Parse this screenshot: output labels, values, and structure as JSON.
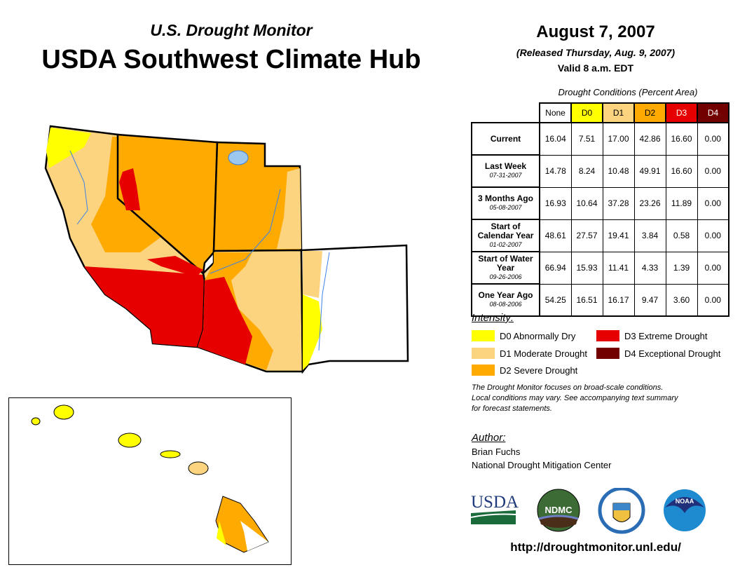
{
  "header": {
    "subtitle": "U.S. Drought Monitor",
    "title": "USDA Southwest Climate Hub",
    "date": "August 7, 2007",
    "released": "(Released Thursday, Aug. 9, 2007)",
    "valid": "Valid 8 a.m. EDT"
  },
  "table": {
    "title": "Drought Conditions (Percent Area)",
    "columns": [
      "None",
      "D0",
      "D1",
      "D2",
      "D3",
      "D4"
    ],
    "rows": [
      {
        "label": "Current",
        "date": "",
        "values": [
          "16.04",
          "7.51",
          "17.00",
          "42.86",
          "16.60",
          "0.00"
        ]
      },
      {
        "label": "Last Week",
        "date": "07-31-2007",
        "values": [
          "14.78",
          "8.24",
          "10.48",
          "49.91",
          "16.60",
          "0.00"
        ]
      },
      {
        "label": "3 Months Ago",
        "date": "05-08-2007",
        "values": [
          "16.93",
          "10.64",
          "37.28",
          "23.26",
          "11.89",
          "0.00"
        ]
      },
      {
        "label": "Start of Calendar Year",
        "date": "01-02-2007",
        "values": [
          "48.61",
          "27.57",
          "19.41",
          "3.84",
          "0.58",
          "0.00"
        ]
      },
      {
        "label": "Start of Water Year",
        "date": "09-26-2006",
        "values": [
          "66.94",
          "15.93",
          "11.41",
          "4.33",
          "1.39",
          "0.00"
        ]
      },
      {
        "label": "One Year Ago",
        "date": "08-08-2006",
        "values": [
          "54.25",
          "16.51",
          "16.17",
          "9.47",
          "3.60",
          "0.00"
        ]
      }
    ]
  },
  "legend": {
    "title": "Intensity:",
    "items": [
      {
        "label": "D0 Abnormally Dry",
        "color": "#FFFF00"
      },
      {
        "label": "D1 Moderate Drought",
        "color": "#FCD37F"
      },
      {
        "label": "D2 Severe Drought",
        "color": "#FFAA00"
      },
      {
        "label": "D3 Extreme Drought",
        "color": "#E60000"
      },
      {
        "label": "D4 Exceptional Drought",
        "color": "#730000"
      }
    ]
  },
  "note": [
    "The Drought Monitor focuses on broad-scale conditions.",
    "Local conditions may vary. See accompanying text summary",
    "for forecast statements."
  ],
  "author": {
    "heading": "Author:",
    "name": "Brian Fuchs",
    "org": "National Drought Mitigation Center"
  },
  "logos": [
    "USDA",
    "NDMC",
    "Department of Commerce",
    "NOAA"
  ],
  "url": "http://droughtmonitor.unl.edu/"
}
